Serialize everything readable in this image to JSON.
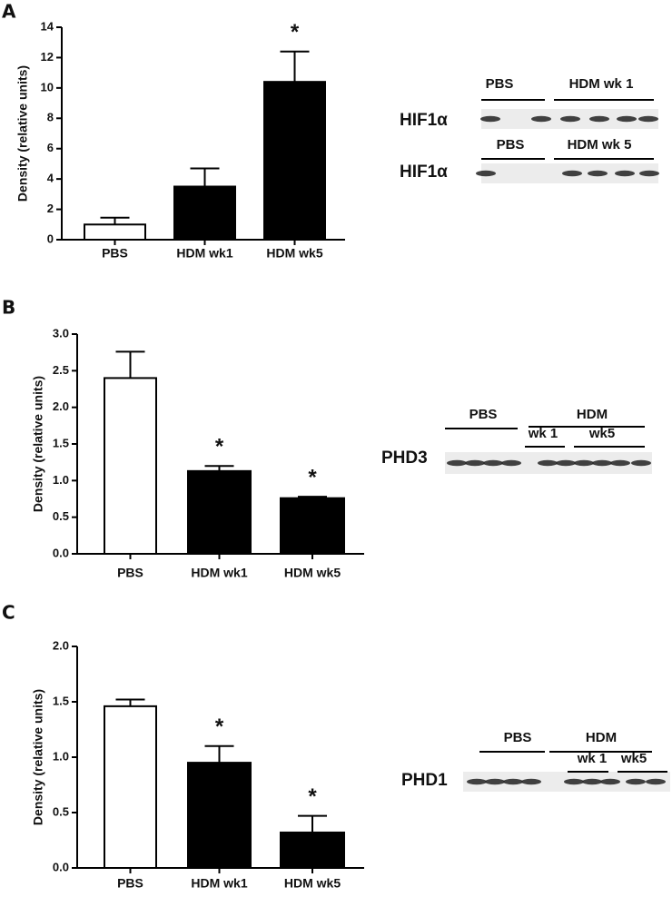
{
  "chart_data": [
    {
      "type": "bar",
      "panel": "A",
      "y_label": "Density (relative units)",
      "categories": [
        "PBS",
        "HDM wk1",
        "HDM wk5"
      ],
      "values": [
        1.0,
        3.5,
        10.4
      ],
      "errors": [
        0.45,
        1.2,
        2.0
      ],
      "colors": [
        "#ffffff",
        "#000000",
        "#000000"
      ],
      "ylim": [
        0,
        14
      ],
      "yticks": [
        0,
        2,
        4,
        6,
        8,
        10,
        12,
        14
      ],
      "annotations": [
        {
          "text": "*",
          "category": "HDM wk5"
        }
      ],
      "blot": {
        "protein_labels": [
          "HIF1α",
          "HIF1α"
        ],
        "groups": [
          "PBS",
          "HDM wk 1",
          "PBS",
          "HDM wk 5"
        ]
      }
    },
    {
      "type": "bar",
      "panel": "B",
      "y_label": "Density (relative units)",
      "categories": [
        "PBS",
        "HDM wk1",
        "HDM wk5"
      ],
      "values": [
        2.4,
        1.13,
        0.76
      ],
      "errors": [
        0.36,
        0.07,
        0.02
      ],
      "colors": [
        "#ffffff",
        "#000000",
        "#000000"
      ],
      "ylim": [
        0,
        3
      ],
      "yticks": [
        {
          "value": 0,
          "label": "0.0"
        },
        0.5,
        {
          "value": 1,
          "label": "1.0"
        },
        1.5,
        {
          "value": 2,
          "label": "2.0"
        },
        2.5,
        {
          "value": 3,
          "label": "3.0"
        }
      ],
      "annotations": [
        {
          "text": "*",
          "category": "HDM wk1"
        },
        {
          "text": "*",
          "category": "HDM wk5"
        }
      ],
      "blot": {
        "protein_labels": [
          "PHD3"
        ],
        "groups": [
          "PBS",
          "HDM",
          "wk 1",
          "wk5"
        ]
      }
    },
    {
      "type": "bar",
      "panel": "C",
      "y_label": "Density (relative units)",
      "categories": [
        "PBS",
        "HDM wk1",
        "HDM wk5"
      ],
      "values": [
        1.46,
        0.95,
        0.32
      ],
      "errors": [
        0.06,
        0.15,
        0.15
      ],
      "colors": [
        "#ffffff",
        "#000000",
        "#000000"
      ],
      "ylim": [
        0,
        2
      ],
      "yticks": [
        {
          "value": 0,
          "label": "0.0"
        },
        0.5,
        {
          "value": 1,
          "label": "1.0"
        },
        1.5,
        {
          "value": 2,
          "label": "2.0"
        }
      ],
      "annotations": [
        {
          "text": "*",
          "category": "HDM wk1"
        },
        {
          "text": "*",
          "category": "HDM wk5"
        }
      ],
      "blot": {
        "protein_labels": [
          "PHD1"
        ],
        "groups": [
          "PBS",
          "HDM",
          "wk 1",
          "wk5"
        ]
      }
    }
  ]
}
